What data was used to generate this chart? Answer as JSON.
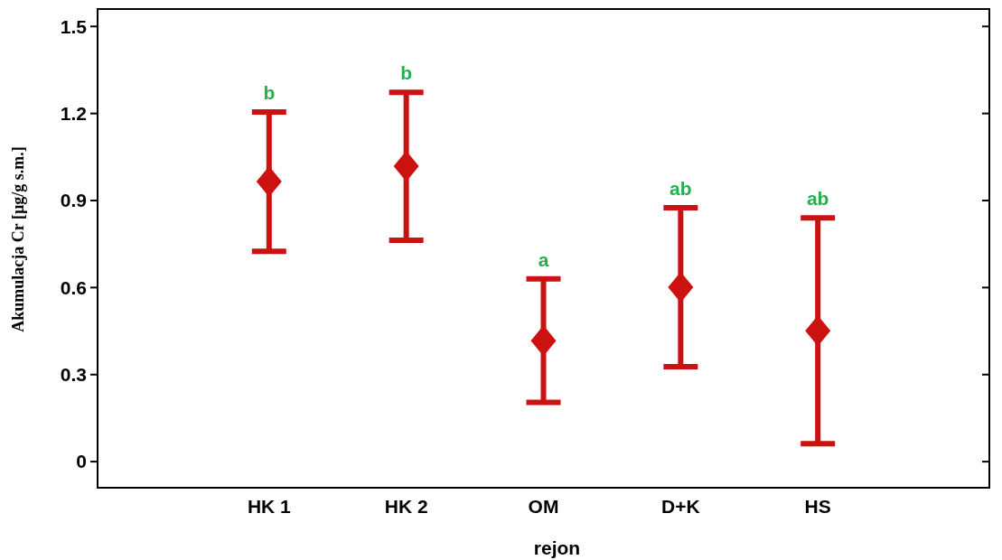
{
  "chart_data": {
    "type": "scatter",
    "xlabel": "rejon",
    "ylabel": "Akumulacja Cr [µg/g s.m.]",
    "categories": [
      "HK 1",
      "HK 2",
      "OM",
      "D+K",
      "HS"
    ],
    "series": [
      {
        "color": "#cc1111",
        "values": [
          0.965,
          1.018,
          0.417,
          0.601,
          0.451
        ],
        "errors": [
          0.24,
          0.255,
          0.213,
          0.274,
          0.389
        ]
      }
    ],
    "ylim": [
      -0.09,
      1.56
    ],
    "yticks": [
      0,
      0.3,
      0.6,
      0.9,
      1.2,
      1.5
    ],
    "marker": "diamond",
    "grid": false,
    "annotations": [
      {
        "text": "b",
        "x": "HK 1",
        "y": 1.205
      },
      {
        "text": "b",
        "x": "HK 2",
        "y": 1.273
      },
      {
        "text": "a",
        "x": "OM",
        "y": 0.63
      },
      {
        "text": "ab",
        "x": "D+K",
        "y": 0.875
      },
      {
        "text": "ab",
        "x": "HS",
        "y": 0.84
      }
    ]
  }
}
